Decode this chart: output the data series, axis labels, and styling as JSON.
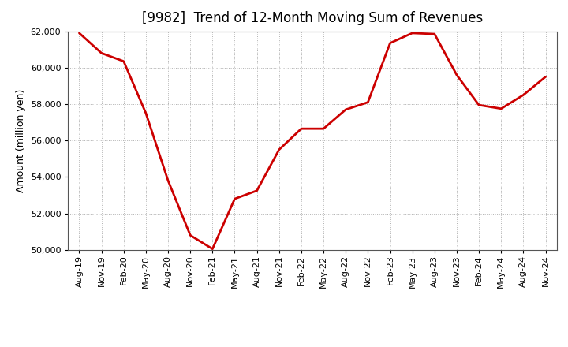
{
  "title": "[9982]  Trend of 12-Month Moving Sum of Revenues",
  "ylabel": "Amount (million yen)",
  "line_color": "#cc0000",
  "background_color": "#ffffff",
  "grid_color": "#b0b0b0",
  "ylim": [
    50000,
    62000
  ],
  "yticks": [
    50000,
    52000,
    54000,
    56000,
    58000,
    60000,
    62000
  ],
  "x_labels": [
    "Aug-19",
    "Nov-19",
    "Feb-20",
    "May-20",
    "Aug-20",
    "Nov-20",
    "Feb-21",
    "May-21",
    "Aug-21",
    "Nov-21",
    "Feb-22",
    "May-22",
    "Aug-22",
    "Nov-22",
    "Feb-23",
    "May-23",
    "Aug-23",
    "Nov-23",
    "Feb-24",
    "May-24",
    "Aug-24",
    "Nov-24"
  ],
  "values": [
    61900,
    60800,
    60350,
    57500,
    53800,
    50800,
    50050,
    52800,
    53250,
    55500,
    56650,
    56650,
    57700,
    58100,
    61350,
    61900,
    61850,
    59600,
    57950,
    57750,
    58500,
    59500
  ]
}
